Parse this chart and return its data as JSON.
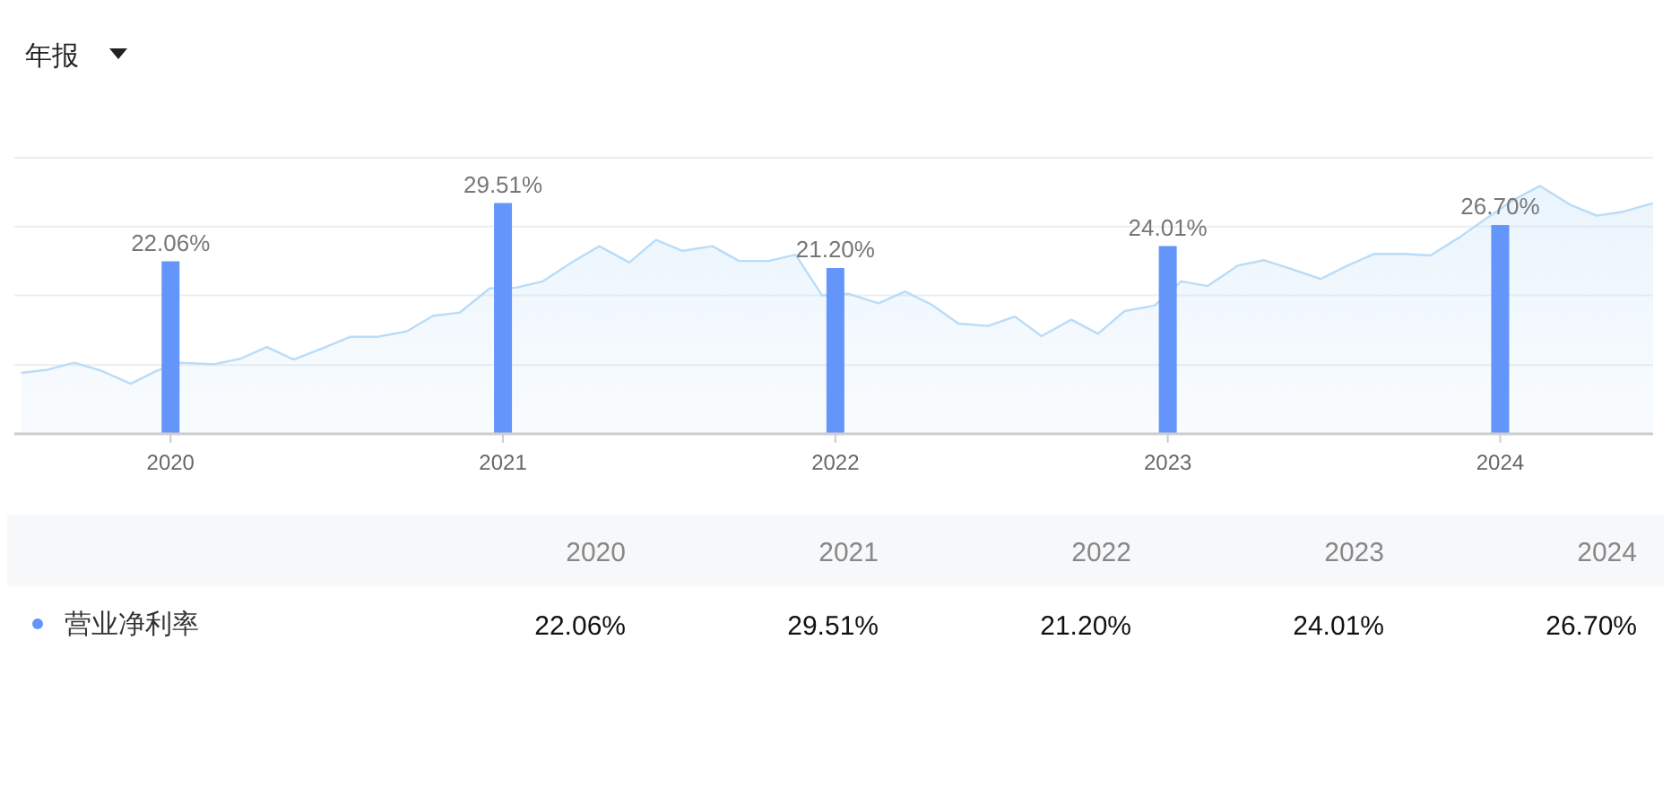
{
  "chart_data": {
    "type": "bar",
    "title": "年报",
    "xlim": [
      2019.53,
      2024.46
    ],
    "xticks": [
      2020,
      2021,
      2022,
      2023,
      2024
    ],
    "ylim": [
      0,
      35.3
    ],
    "yticks": [
      {
        "value": 0,
        "label": null
      },
      {
        "value": 8.8,
        "label": null
      },
      {
        "value": 17.7,
        "label": null
      },
      {
        "value": 26.5,
        "label": null
      },
      {
        "value": 35.3,
        "label": null
      }
    ],
    "grid": "y",
    "legend": "bottom",
    "annotations": [
      "2020",
      "2021",
      "2022",
      "2023",
      "2024"
    ],
    "series": [
      {
        "type": "area",
        "color": "#b9dcf8",
        "x": [
          2019.55,
          2019.63,
          2019.71,
          2019.79,
          2019.88,
          2019.96,
          2020.03,
          2020.13,
          2020.21,
          2020.29,
          2020.37,
          2020.46,
          2020.54,
          2020.62,
          2020.71,
          2020.79,
          2020.87,
          2020.96,
          2021.04,
          2021.12,
          2021.21,
          2021.29,
          2021.38,
          2021.46,
          2021.54,
          2021.63,
          2021.71,
          2021.8,
          2021.88,
          2021.96,
          2022.04,
          2022.13,
          2022.21,
          2022.29,
          2022.37,
          2022.46,
          2022.54,
          2022.62,
          2022.71,
          2022.79,
          2022.87,
          2022.96,
          2023.04,
          2023.12,
          2023.21,
          2023.29,
          2023.37,
          2023.46,
          2023.54,
          2023.62,
          2023.71,
          2023.79,
          2023.88,
          2023.96,
          2024.04,
          2024.12,
          2024.21,
          2024.29,
          2024.37,
          2024.46
        ],
        "values": [
          7.8,
          8.2,
          9.1,
          8.1,
          6.4,
          8.1,
          9.1,
          8.9,
          9.6,
          11.1,
          9.5,
          11,
          12.4,
          12.4,
          13.1,
          15.1,
          15.5,
          18.6,
          18.7,
          19.5,
          22,
          24,
          21.9,
          24.8,
          23.4,
          24,
          22.1,
          22.1,
          22.9,
          17.7,
          17.9,
          16.7,
          18.2,
          16.5,
          14.1,
          13.8,
          15,
          12.5,
          14.6,
          12.8,
          15.7,
          16.4,
          19.5,
          18.9,
          21.5,
          22.2,
          21.1,
          19.8,
          21.5,
          23,
          23,
          22.8,
          25.2,
          27.6,
          29.9,
          31.7,
          29.3,
          27.9,
          28.4,
          29.5
        ]
      },
      {
        "name": "营业净利率",
        "color": "#6495fa",
        "x": [
          2020,
          2021,
          2022,
          2023,
          2024
        ],
        "values": [
          22.06,
          29.51,
          21.2,
          24.01,
          26.7
        ],
        "value_labels": [
          "22.06%",
          "29.51%",
          "21.20%",
          "24.01%",
          "26.70%"
        ]
      }
    ]
  }
}
